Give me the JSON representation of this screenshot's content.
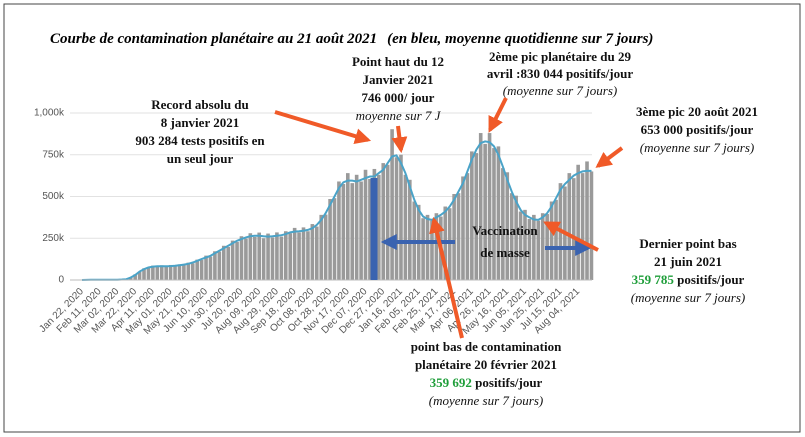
{
  "chart_data": {
    "type": "bar",
    "title": "Courbe de contamination planétaire au 21 août 2021",
    "subtitle": "(en bleu, moyenne quotidienne sur 7 jours)",
    "categories": [
      "Jan 22, 2020",
      null,
      null,
      null,
      "Feb 11, 2020",
      null,
      null,
      null,
      "Mar 02, 2020",
      null,
      null,
      null,
      "Mar 22, 2020",
      null,
      null,
      null,
      "Apr 11, 2020",
      null,
      null,
      null,
      "May 01, 2020",
      null,
      null,
      null,
      "May 21, 2020",
      null,
      null,
      null,
      "Jun 10, 2020",
      null,
      null,
      null,
      "Jun 30, 2020",
      null,
      null,
      null,
      "Jul 20, 2020",
      null,
      null,
      null,
      "Aug 09, 2020",
      null,
      null,
      null,
      "Aug 29, 2020",
      null,
      null,
      null,
      "Sep 18, 2020",
      null,
      null,
      null,
      "Oct 08, 2020",
      null,
      null,
      null,
      "Oct 28, 2020",
      null,
      null,
      null,
      "Nov 17, 2020",
      null,
      null,
      null,
      "Dec 07, 2020",
      null,
      null,
      null,
      "Dec 27, 2020",
      null,
      null,
      null,
      "Jan 16, 2021",
      null,
      null,
      null,
      "Feb 05, 2021",
      null,
      null,
      null,
      "Feb 25, 2021",
      null,
      null,
      null,
      "Mar 17, 2021",
      null,
      null,
      null,
      "Apr 06, 2021",
      null,
      null,
      null,
      "Apr 26, 2021",
      null,
      null,
      null,
      "May 16, 2021",
      null,
      null,
      null,
      "Jun 05, 2021",
      null,
      null,
      null,
      "Jun 25, 2021",
      null,
      null,
      null,
      "Jul 15, 2021",
      null,
      null,
      null,
      "Aug 04, 2021",
      null,
      null,
      null
    ],
    "series": [
      {
        "kind": "bar",
        "color": "#9a9a9a",
        "values": [
          0,
          1,
          1,
          2,
          2,
          3,
          2,
          2,
          3,
          3,
          6,
          18,
          34,
          48,
          70,
          78,
          86,
          78,
          88,
          80,
          90,
          82,
          94,
          90,
          104,
          100,
          122,
          120,
          146,
          140,
          172,
          170,
          205,
          198,
          236,
          228,
          262,
          248,
          280,
          258,
          284,
          250,
          278,
          255,
          285,
          260,
          292,
          280,
          312,
          285,
          315,
          292,
          335,
          320,
          390,
          392,
          485,
          490,
          590,
          575,
          640,
          580,
          630,
          590,
          660,
          605,
          665,
          630,
          700,
          690,
          903,
          735,
          750,
          630,
          600,
          470,
          450,
          370,
          390,
          355,
          400,
          380,
          440,
          430,
          515,
          520,
          620,
          640,
          770,
          760,
          880,
          815,
          880,
          790,
          800,
          670,
          645,
          520,
          505,
          410,
          420,
          365,
          390,
          355,
          400,
          395,
          470,
          480,
          580,
          560,
          640,
          610,
          690,
          640,
          710,
          650
        ]
      },
      {
        "kind": "line",
        "color": "#4aa3c8",
        "values": [
          0,
          0.5,
          1,
          1.5,
          2,
          2,
          2,
          2,
          2,
          3,
          5,
          15,
          30,
          50,
          65,
          75,
          80,
          82,
          82,
          82,
          83,
          85,
          88,
          92,
          97,
          105,
          115,
          125,
          135,
          145,
          160,
          175,
          190,
          205,
          220,
          235,
          245,
          255,
          262,
          265,
          265,
          262,
          260,
          262,
          265,
          268,
          275,
          285,
          290,
          292,
          295,
          300,
          310,
          330,
          360,
          400,
          450,
          500,
          550,
          585,
          595,
          595,
          590,
          600,
          610,
          620,
          620,
          640,
          660,
          700,
          740,
          746,
          700,
          640,
          560,
          480,
          420,
          380,
          365,
          360,
          375,
          390,
          410,
          440,
          480,
          530,
          580,
          650,
          720,
          780,
          820,
          830,
          825,
          800,
          750,
          680,
          600,
          530,
          470,
          420,
          390,
          375,
          362,
          360,
          375,
          400,
          440,
          490,
          540,
          575,
          600,
          625,
          640,
          650,
          653,
          653
        ]
      }
    ],
    "ylim": [
      0,
      1000
    ],
    "yticks": [
      0,
      {
        "value": 250,
        "label": "250k"
      },
      {
        "value": 500,
        "label": "500k"
      },
      {
        "value": 750,
        "label": "750k"
      },
      {
        "value": 1000,
        "label": "1,000k"
      }
    ],
    "annotations": [
      {
        "lines": [
          {
            "style": "bold",
            "parts": [
              {
                "text": "Point haut du 12"
              }
            ]
          },
          {
            "style": "bold",
            "parts": [
              {
                "text": "Janvier 2021"
              }
            ]
          },
          {
            "style": "bold",
            "parts": [
              {
                "text": "746 000/ jour"
              }
            ]
          },
          {
            "style": "italic",
            "parts": [
              {
                "text": "moyenne sur 7 J"
              }
            ]
          }
        ]
      },
      {
        "lines": [
          {
            "style": "bold",
            "parts": [
              {
                "text": "Record absolu du"
              }
            ]
          },
          {
            "style": "bold",
            "parts": [
              {
                "text": "8 janvier 2021"
              }
            ]
          },
          {
            "style": "bold",
            "parts": [
              {
                "text": "903 284 tests positifs en"
              }
            ]
          },
          {
            "style": "bold",
            "parts": [
              {
                "text": "un seul jour"
              }
            ]
          }
        ]
      },
      {
        "lines": [
          {
            "style": "bold",
            "parts": [
              {
                "text": "2ème pic  planétaire du 29"
              }
            ]
          },
          {
            "style": "bold",
            "parts": [
              {
                "text": "avril :830 044 positifs/jour"
              }
            ]
          },
          {
            "style": "italic",
            "parts": [
              {
                "text": "(moyenne sur 7 jours)"
              }
            ]
          }
        ]
      },
      {
        "lines": [
          {
            "style": "bold",
            "parts": [
              {
                "text": "3ème pic 20 août 2021"
              }
            ]
          },
          {
            "style": "bold",
            "parts": [
              {
                "text": "653 000 positifs/jour"
              }
            ]
          },
          {
            "style": "italic",
            "parts": [
              {
                "text": "(moyenne sur 7 jours)"
              }
            ]
          }
        ]
      },
      {
        "lines": [
          {
            "style": "big",
            "parts": [
              {
                "text": "Vaccination"
              }
            ]
          },
          {
            "style": "big",
            "parts": [
              {
                "text": "de masse"
              }
            ]
          }
        ]
      },
      {
        "lines": [
          {
            "style": "bold",
            "parts": [
              {
                "text": "Dernier point bas"
              }
            ]
          },
          {
            "style": "bold",
            "parts": [
              {
                "text": "21 juin 2021"
              }
            ]
          },
          {
            "style": "bold",
            "parts": [
              {
                "text": "359 785",
                "color": "#1f9e3a"
              },
              {
                "text": " positifs/jour"
              }
            ]
          },
          {
            "style": "italic",
            "parts": [
              {
                "text": "(moyenne sur 7 jours)"
              }
            ]
          }
        ]
      },
      {
        "lines": [
          {
            "style": "bold",
            "parts": [
              {
                "text": "point bas de contamination"
              }
            ]
          },
          {
            "style": "bold",
            "parts": [
              {
                "text": "planétaire 20 février 2021"
              }
            ]
          },
          {
            "style": "bold",
            "parts": [
              {
                "text": "359 692",
                "color": "#1f9e3a"
              },
              {
                "text": " positifs/jour"
              }
            ]
          },
          {
            "style": "italic",
            "parts": [
              {
                "text": "(moyenne sur 7 jours)"
              }
            ]
          }
        ]
      }
    ]
  }
}
